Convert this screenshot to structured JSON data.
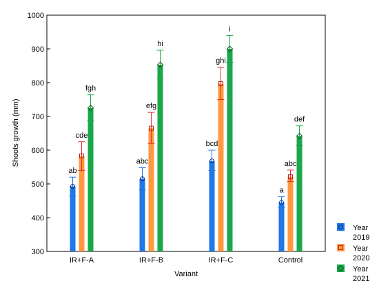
{
  "chart_data": {
    "type": "bar",
    "xlabel": "Variant",
    "ylabel": "Shoots growth (mm)",
    "ylim": [
      300,
      1000
    ],
    "yticks": [
      300,
      400,
      500,
      600,
      700,
      800,
      900,
      1000
    ],
    "grid": false,
    "legend_position": "bottom-right, outside plot",
    "categories": [
      "IR+F-A",
      "IR+F-B",
      "IR+F-C",
      "Control"
    ],
    "series": [
      {
        "name": "Year 2019",
        "legend_lines": [
          "Year",
          "2019"
        ],
        "color": "#1f77e8",
        "marker": "circle",
        "values": [
          493,
          515,
          568,
          445
        ],
        "err_low": [
          465,
          483,
          540,
          430
        ],
        "err_high": [
          520,
          548,
          600,
          462
        ],
        "labels": [
          "ab",
          "abc",
          "bcd",
          "a"
        ]
      },
      {
        "name": "Year 2020",
        "legend_lines": [
          "Year",
          "2020"
        ],
        "color": "#ff9940",
        "error_color": "#e03030",
        "marker": "square",
        "values": [
          583,
          665,
          797,
          521
        ],
        "err_low": [
          540,
          620,
          750,
          507
        ],
        "err_high": [
          625,
          712,
          846,
          541
        ],
        "labels": [
          "cde",
          "efg",
          "ghi",
          "abc"
        ]
      },
      {
        "name": "Year 2021",
        "legend_lines": [
          "Year",
          "2021"
        ],
        "color": "#1aa84a",
        "marker": "diamond",
        "values": [
          725,
          853,
          900,
          642
        ],
        "err_low": [
          688,
          812,
          860,
          613
        ],
        "err_high": [
          764,
          896,
          940,
          672
        ],
        "labels": [
          "fgh",
          "hi",
          "i",
          "def"
        ]
      }
    ]
  }
}
